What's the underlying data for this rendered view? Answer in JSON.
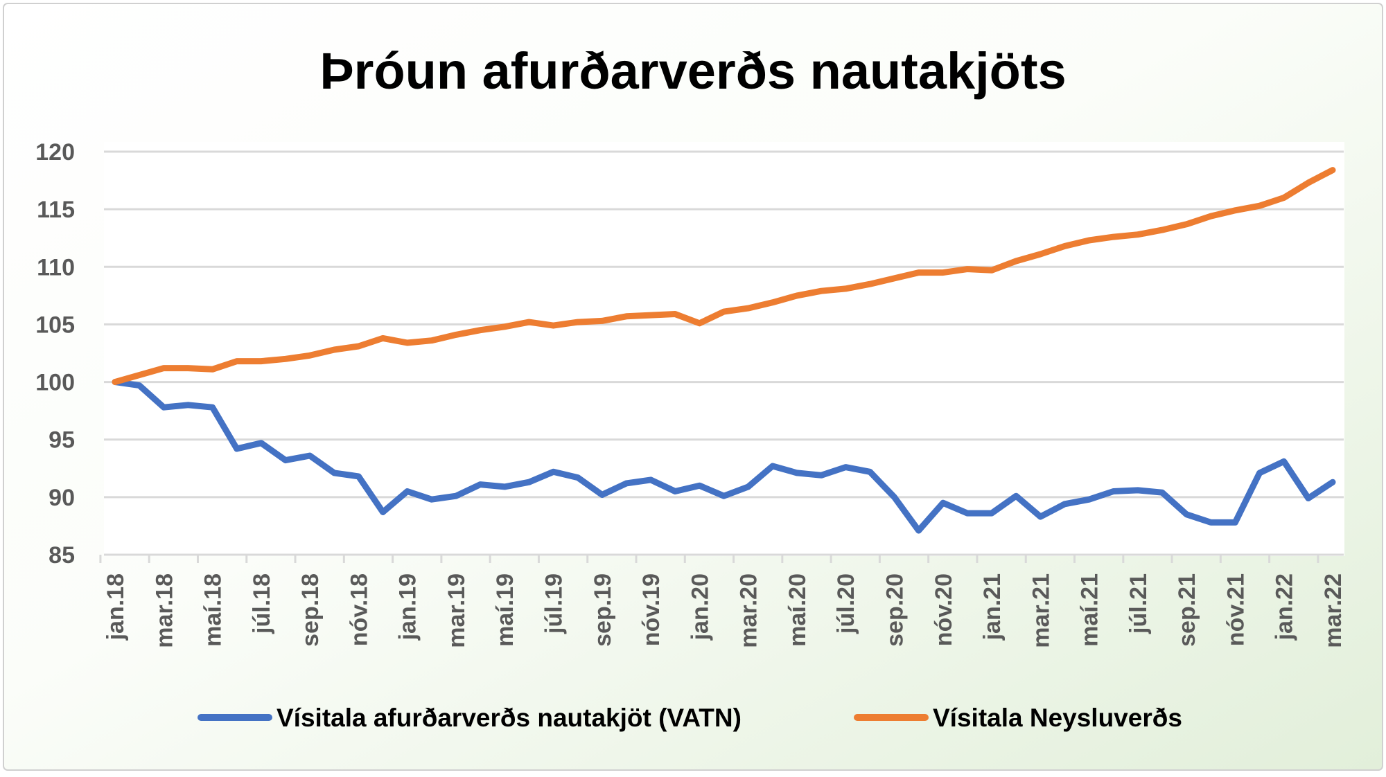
{
  "chart_data": {
    "type": "line",
    "title": "Þróun afurðarverðs nautakjöts",
    "xlabel": "",
    "ylabel": "",
    "ylim": [
      85,
      120
    ],
    "yticks": [
      85,
      90,
      95,
      100,
      105,
      110,
      115,
      120
    ],
    "grid": true,
    "legend_position": "bottom",
    "x": [
      "jan.18",
      "feb.18",
      "mar.18",
      "apr.18",
      "maí.18",
      "jún.18",
      "júl.18",
      "ágú.18",
      "sep.18",
      "okt.18",
      "nóv.18",
      "des.18",
      "jan.19",
      "feb.19",
      "mar.19",
      "apr.19",
      "maí.19",
      "jún.19",
      "júl.19",
      "ágú.19",
      "sep.19",
      "okt.19",
      "nóv.19",
      "des.19",
      "jan.20",
      "feb.20",
      "mar.20",
      "apr.20",
      "maí.20",
      "jún.20",
      "júl.20",
      "ágú.20",
      "sep.20",
      "okt.20",
      "nóv.20",
      "des.20",
      "jan.21",
      "feb.21",
      "mar.21",
      "apr.21",
      "maí.21",
      "jún.21",
      "júl.21",
      "ágú.21",
      "sep.21",
      "okt.21",
      "nóv.21",
      "des.21",
      "jan.22",
      "feb.22",
      "mar.22"
    ],
    "xtick_labels": [
      "jan.18",
      "mar.18",
      "maí.18",
      "júl.18",
      "sep.18",
      "nóv.18",
      "jan.19",
      "mar.19",
      "maí.19",
      "júl.19",
      "sep.19",
      "nóv.19",
      "jan.20",
      "mar.20",
      "maí.20",
      "júl.20",
      "sep.20",
      "nóv.20",
      "jan.21",
      "mar.21",
      "maí.21",
      "júl.21",
      "sep.21",
      "nóv.21",
      "jan.22",
      "mar.22"
    ],
    "series": [
      {
        "name": "Vísitala afurðarverðs nautakjöt (VATN)",
        "color": "#4472C4",
        "values": [
          100,
          99.7,
          97.8,
          98.0,
          97.8,
          94.2,
          94.7,
          93.2,
          93.6,
          92.1,
          91.8,
          88.7,
          90.5,
          89.8,
          90.1,
          91.1,
          90.9,
          91.3,
          92.2,
          91.7,
          90.2,
          91.2,
          91.5,
          90.5,
          91.0,
          90.1,
          90.9,
          92.7,
          92.1,
          91.9,
          92.6,
          92.2,
          90.0,
          87.1,
          89.5,
          88.6,
          88.6,
          90.1,
          88.3,
          89.4,
          89.8,
          90.5,
          90.6,
          90.4,
          88.5,
          87.8,
          87.8,
          92.1,
          93.1,
          89.9,
          91.3
        ]
      },
      {
        "name": "Vísitala Neysluverðs",
        "color": "#ED7D31",
        "values": [
          100,
          100.6,
          101.2,
          101.2,
          101.1,
          101.8,
          101.8,
          102.0,
          102.3,
          102.8,
          103.1,
          103.8,
          103.4,
          103.6,
          104.1,
          104.5,
          104.8,
          105.2,
          104.9,
          105.2,
          105.3,
          105.7,
          105.8,
          105.9,
          105.1,
          106.1,
          106.4,
          106.9,
          107.5,
          107.9,
          108.1,
          108.5,
          109.0,
          109.5,
          109.5,
          109.8,
          109.7,
          110.5,
          111.1,
          111.8,
          112.3,
          112.6,
          112.8,
          113.2,
          113.7,
          114.4,
          114.9,
          115.3,
          116.0,
          117.3,
          118.4
        ]
      }
    ]
  }
}
